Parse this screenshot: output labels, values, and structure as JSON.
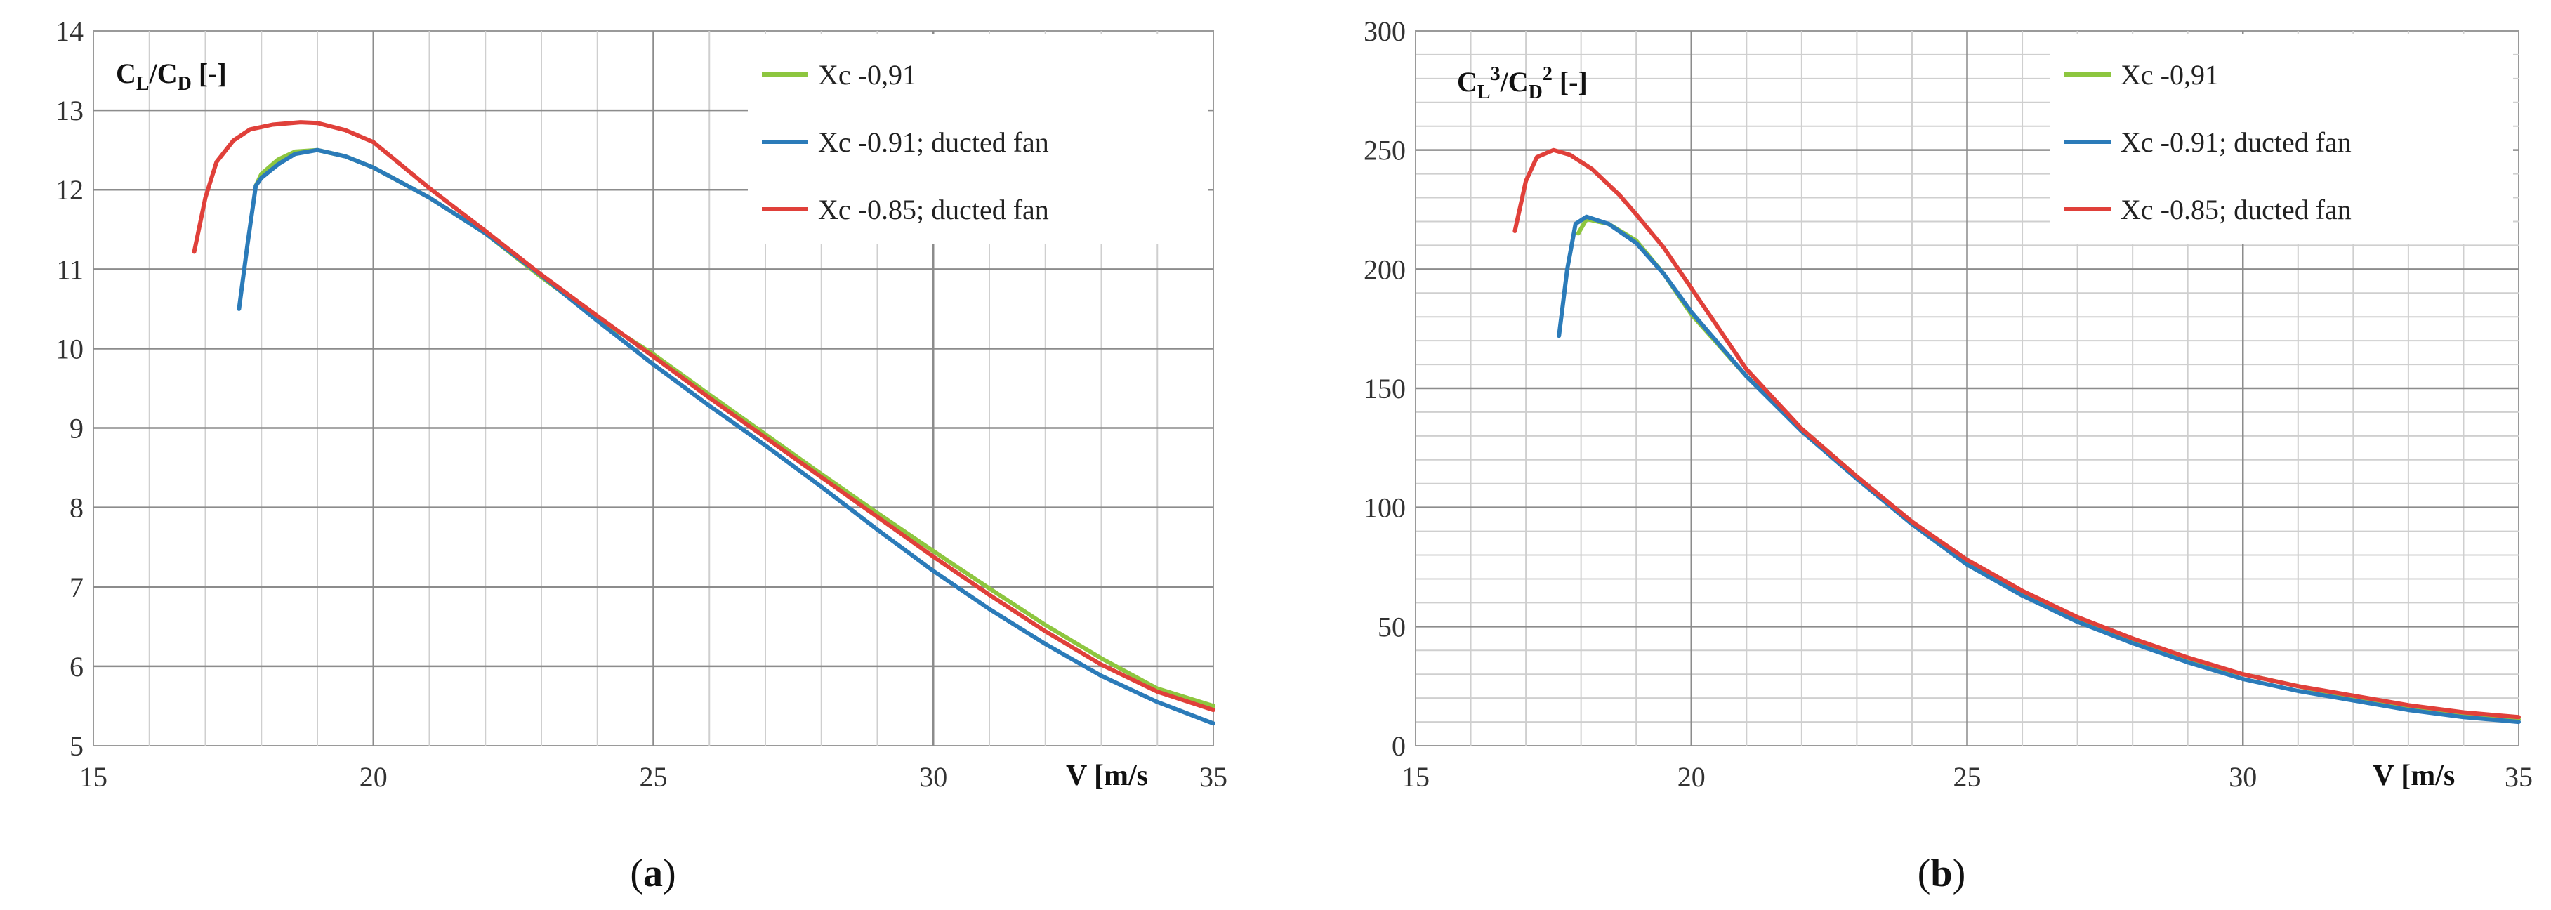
{
  "colors": {
    "green": "#8dc63f",
    "blue": "#2b7bb9",
    "red": "#e0403a",
    "grid_major": "#8c8c8c",
    "grid_minor": "#cfcfcf"
  },
  "chart_data": [
    {
      "type": "line",
      "id": "a",
      "caption": "a",
      "ylabel_main": "C",
      "ylabel_sub1": "L",
      "ylabel_slash": "/C",
      "ylabel_sub2": "D",
      "ylabel_unit": " [-]",
      "xlabel": "V [m/s",
      "xlim": [
        15,
        35
      ],
      "ylim": [
        5,
        14
      ],
      "xticks": [
        "15",
        "20",
        "25",
        "30",
        "35"
      ],
      "yticks": [
        "5",
        "6",
        "7",
        "8",
        "9",
        "10",
        "11",
        "12",
        "13",
        "14"
      ],
      "legend": [
        "Xc  -0,91",
        "Xc  -0.91; ducted fan",
        "Xc  -0.85; ducted fan"
      ],
      "series": [
        {
          "name": "Xc  -0,91",
          "color": "#8dc63f",
          "x": [
            17.9,
            18.0,
            18.3,
            18.6,
            19.0,
            19.5,
            20,
            21,
            22,
            23,
            24,
            25,
            26,
            27,
            28,
            29,
            30,
            31,
            32,
            33,
            34,
            35
          ],
          "y": [
            12.05,
            12.2,
            12.38,
            12.48,
            12.5,
            12.42,
            12.28,
            11.9,
            11.45,
            10.9,
            10.38,
            9.93,
            9.42,
            8.92,
            8.42,
            7.93,
            7.45,
            6.98,
            6.52,
            6.1,
            5.72,
            5.5
          ]
        },
        {
          "name": "Xc  -0.91; ducted fan",
          "color": "#2b7bb9",
          "x": [
            17.6,
            17.75,
            17.9,
            18.0,
            18.3,
            18.6,
            19.0,
            19.5,
            20,
            21,
            22,
            23,
            24,
            25,
            26,
            27,
            28,
            29,
            30,
            31,
            32,
            33,
            34,
            35
          ],
          "y": [
            10.5,
            11.3,
            12.05,
            12.15,
            12.32,
            12.45,
            12.5,
            12.42,
            12.28,
            11.9,
            11.45,
            10.92,
            10.35,
            9.8,
            9.28,
            8.78,
            8.26,
            7.72,
            7.2,
            6.72,
            6.28,
            5.88,
            5.55,
            5.28
          ]
        },
        {
          "name": "Xc  -0.85; ducted fan",
          "color": "#e0403a",
          "x": [
            16.8,
            17.0,
            17.2,
            17.5,
            17.8,
            18.2,
            18.7,
            19.0,
            19.5,
            20,
            21,
            22,
            23,
            24,
            25,
            26,
            27,
            28,
            29,
            30,
            31,
            32,
            33,
            34,
            35
          ],
          "y": [
            11.22,
            11.9,
            12.35,
            12.62,
            12.76,
            12.82,
            12.85,
            12.84,
            12.75,
            12.6,
            12.02,
            11.48,
            10.93,
            10.41,
            9.9,
            9.38,
            8.88,
            8.38,
            7.88,
            7.38,
            6.9,
            6.44,
            6.02,
            5.68,
            5.45
          ]
        }
      ]
    },
    {
      "type": "line",
      "id": "b",
      "caption": "b",
      "ylabel_main": "C",
      "ylabel_sub1": "L",
      "ylabel_sup1": "3",
      "ylabel_slash": "/C",
      "ylabel_sub2": "D",
      "ylabel_sup2": "2",
      "ylabel_unit": " [-]",
      "xlabel": "V [m/s",
      "xlim": [
        15,
        35
      ],
      "ylim": [
        0,
        300
      ],
      "xticks": [
        "15",
        "20",
        "25",
        "30",
        "35"
      ],
      "yticks": [
        "0",
        "50",
        "100",
        "150",
        "200",
        "250",
        "300"
      ],
      "legend": [
        "Xc  -0,91",
        "Xc  -0.91; ducted fan",
        "Xc  -0.85; ducted fan"
      ],
      "series": [
        {
          "name": "Xc  -0,91",
          "color": "#8dc63f",
          "x": [
            17.95,
            18.1,
            18.5,
            19.0,
            19.5,
            20,
            21,
            22,
            23,
            24,
            25,
            26,
            27,
            28,
            29,
            30,
            31,
            32,
            33,
            34,
            35
          ],
          "y": [
            215,
            221,
            219,
            212,
            198,
            181,
            155,
            133,
            113,
            93,
            77,
            64,
            53,
            44,
            36,
            30,
            25,
            20,
            16,
            13,
            11
          ]
        },
        {
          "name": "Xc  -0.91; ducted fan",
          "color": "#2b7bb9",
          "x": [
            17.6,
            17.75,
            17.9,
            18.1,
            18.5,
            19.0,
            19.5,
            20,
            21,
            22,
            23,
            24,
            25,
            26,
            27,
            28,
            29,
            30,
            31,
            32,
            33,
            34,
            35
          ],
          "y": [
            172,
            200,
            219,
            222,
            219,
            211,
            198,
            182,
            155,
            132,
            112,
            93,
            76,
            63,
            52,
            43,
            35,
            28,
            23,
            19,
            15,
            12,
            10
          ]
        },
        {
          "name": "Xc  -0.85; ducted fan",
          "color": "#e0403a",
          "x": [
            16.8,
            17.0,
            17.2,
            17.5,
            17.8,
            18.2,
            18.7,
            19.0,
            19.5,
            20,
            21,
            22,
            23,
            24,
            25,
            26,
            27,
            28,
            29,
            30,
            31,
            32,
            33,
            34,
            35
          ],
          "y": [
            216,
            237,
            247,
            250,
            248,
            242,
            231,
            223,
            209,
            192,
            158,
            133,
            113,
            94,
            78,
            65,
            54,
            45,
            37,
            30,
            25,
            21,
            17,
            14,
            12
          ]
        }
      ]
    }
  ]
}
